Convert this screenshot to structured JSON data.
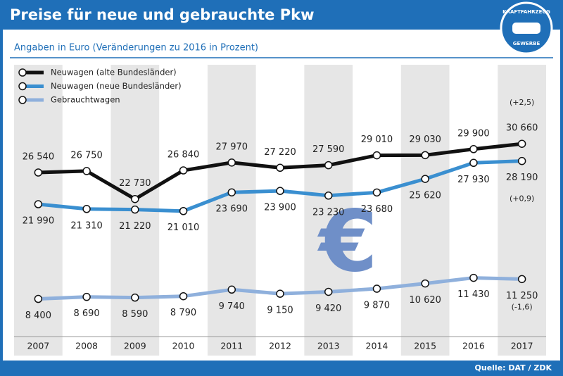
{
  "chart_data": {
    "type": "line",
    "title": "Preise für neue und gebrauchte Pkw",
    "subtitle": "Angaben in Euro (Veränderungen zu 2016 in Prozent)",
    "source": "Quelle: DAT / ZDK",
    "watermark": "€",
    "categories": [
      "2007",
      "2008",
      "2009",
      "2010",
      "2011",
      "2012",
      "2013",
      "2014",
      "2015",
      "2016",
      "2017"
    ],
    "ylim": [
      3000,
      42000
    ],
    "legend": "top-left",
    "series": [
      {
        "name": "Neuwagen (alte Bundesländer)",
        "color": "#111111",
        "change": "(+2,5)",
        "values": [
          26540,
          26750,
          22730,
          26840,
          27970,
          27220,
          27590,
          29010,
          29030,
          29900,
          30660
        ],
        "value_labels": [
          "26 540",
          "26 750",
          "22 730",
          "26 840",
          "27 970",
          "27 220",
          "27 590",
          "29 010",
          "29 030",
          "29 900",
          "30 660"
        ]
      },
      {
        "name": "Neuwagen (neue Bundesländer)",
        "color": "#3a8fd0",
        "change": "(+0,9)",
        "values": [
          21990,
          21310,
          21220,
          21010,
          23690,
          23900,
          23230,
          23680,
          25620,
          27930,
          28190
        ],
        "value_labels": [
          "21 990",
          "21 310",
          "21 220",
          "21 010",
          "23 690",
          "23 900",
          "23 230",
          "23 680",
          "25 620",
          "27 930",
          "28 190"
        ]
      },
      {
        "name": "Gebrauchtwagen",
        "color": "#8fb0dc",
        "change": "(-1,6)",
        "values": [
          8400,
          8690,
          8590,
          8790,
          9740,
          9150,
          9420,
          9870,
          10620,
          11430,
          11250
        ],
        "value_labels": [
          "8 400",
          "8 690",
          "8 590",
          "8 790",
          "9 740",
          "9 150",
          "9 420",
          "9 870",
          "10 620",
          "11 430",
          "11 250"
        ]
      }
    ]
  },
  "logo": {
    "top": "KRAFTFAHRZEUG",
    "bottom": "GEWERBE"
  }
}
